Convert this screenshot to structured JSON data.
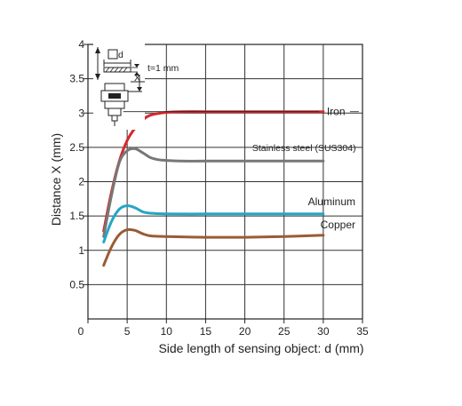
{
  "chart_data": {
    "type": "line",
    "xlabel": "Side length of sensing object: d (mm)",
    "ylabel": "Distance X (mm)",
    "xlim": [
      0,
      35
    ],
    "ylim": [
      0,
      4
    ],
    "x_ticks": [
      0,
      5,
      10,
      15,
      20,
      25,
      30,
      35
    ],
    "y_ticks": [
      0.5,
      1,
      1.5,
      2,
      2.5,
      3,
      3.5,
      4
    ],
    "grid": true,
    "series": [
      {
        "name": "Iron",
        "color": "#d6282e",
        "x": [
          2,
          3,
          4,
          5,
          6,
          7,
          8,
          10,
          12,
          15,
          20,
          25,
          30
        ],
        "y": [
          1.28,
          1.85,
          2.3,
          2.6,
          2.78,
          2.9,
          2.97,
          3.01,
          3.02,
          3.02,
          3.02,
          3.02,
          3.02
        ]
      },
      {
        "name": "Stainless steel (SUS304)",
        "color": "#777777",
        "x": [
          2,
          3,
          4,
          5,
          6,
          7,
          8,
          9,
          10,
          12,
          15,
          20,
          25,
          30
        ],
        "y": [
          1.2,
          1.8,
          2.28,
          2.45,
          2.48,
          2.42,
          2.35,
          2.32,
          2.31,
          2.3,
          2.3,
          2.3,
          2.3,
          2.3
        ]
      },
      {
        "name": "Aluminum",
        "color": "#24a6c6",
        "x": [
          2,
          3,
          4,
          5,
          6,
          7,
          8,
          10,
          15,
          20,
          25,
          30
        ],
        "y": [
          1.12,
          1.42,
          1.6,
          1.65,
          1.62,
          1.56,
          1.54,
          1.53,
          1.53,
          1.53,
          1.53,
          1.53
        ]
      },
      {
        "name": "Copper",
        "color": "#9a5b36",
        "x": [
          2,
          3,
          4,
          5,
          6,
          7,
          8,
          10,
          15,
          20,
          25,
          30
        ],
        "y": [
          0.78,
          1.05,
          1.23,
          1.3,
          1.29,
          1.24,
          1.21,
          1.2,
          1.19,
          1.19,
          1.2,
          1.22
        ]
      }
    ],
    "inset_labels": {
      "d": "d",
      "t": "t=1 mm",
      "x": "X"
    }
  }
}
